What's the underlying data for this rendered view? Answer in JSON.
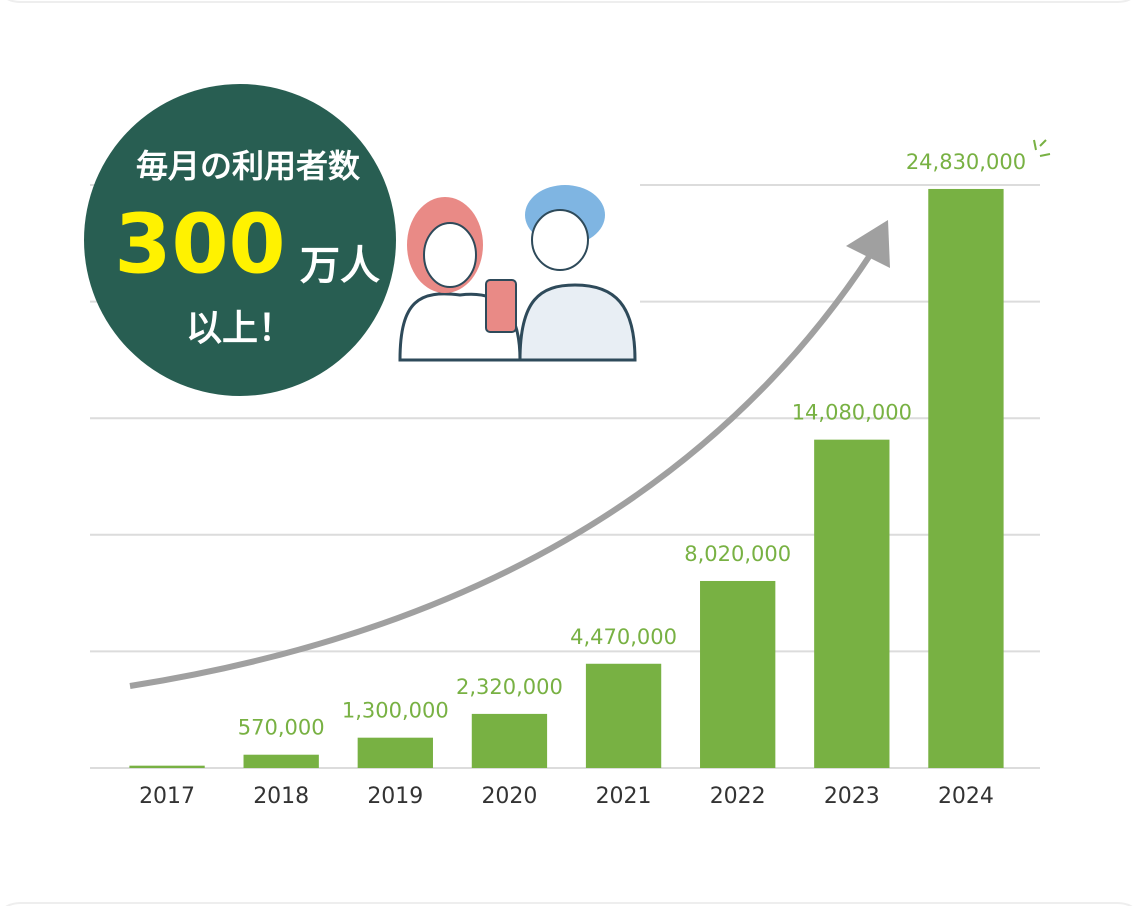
{
  "chart_data": {
    "type": "bar",
    "annotation": {
      "heading": "毎月の利用者数",
      "number": "300",
      "unit": "万人",
      "footer": "以上！"
    },
    "categories": [
      "2017",
      "2018",
      "2019",
      "2020",
      "2021",
      "2022",
      "2023",
      "2024"
    ],
    "values": [
      100000,
      570000,
      1300000,
      2320000,
      4470000,
      8020000,
      14080000,
      24830000
    ],
    "value_labels": [
      null,
      "570,000",
      "1,300,000",
      "2,320,000",
      "4,470,000",
      "8,020,000",
      "14,080,000",
      "24,830,000"
    ],
    "color": "#78b143",
    "ylim": [
      0,
      25000000
    ],
    "yticks": [
      0,
      5000000,
      10000000,
      15000000,
      20000000,
      25000000
    ],
    "grid": true
  }
}
